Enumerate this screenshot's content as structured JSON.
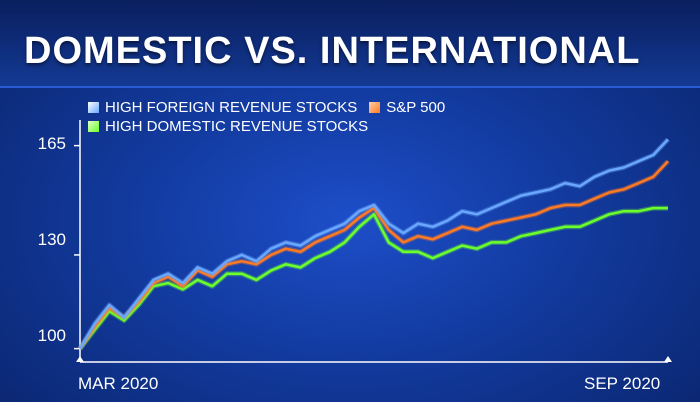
{
  "title": "DOMESTIC VS. INTERNATIONAL",
  "colors": {
    "foreign": "#6aa8ff",
    "sp500": "#ff7a22",
    "domestic": "#6cff2a",
    "axis": "#ffffff"
  },
  "chart_data": {
    "type": "line",
    "xlabel": "",
    "ylabel": "",
    "ylim": [
      97,
      170
    ],
    "x_tick_labels": [
      "MAR 2020",
      "SEP 2020"
    ],
    "y_ticks": [
      100,
      130,
      165
    ],
    "legend": {
      "placement": "top-left",
      "entries": [
        {
          "name": "HIGH FOREIGN REVENUE STOCKS",
          "color": "#6aa8ff"
        },
        {
          "name": "S&P 500",
          "color": "#ff7a22"
        },
        {
          "name": "HIGH DOMESTIC REVENUE STOCKS",
          "color": "#6cff2a"
        }
      ]
    },
    "series": [
      {
        "name": "HIGH FOREIGN REVENUE STOCKS",
        "values": [
          100,
          108,
          114,
          110,
          116,
          122,
          124,
          121,
          126,
          124,
          128,
          130,
          128,
          132,
          134,
          133,
          136,
          138,
          140,
          144,
          146,
          140,
          137,
          140,
          139,
          141,
          144,
          143,
          145,
          147,
          149,
          150,
          151,
          153,
          152,
          155,
          157,
          158,
          160,
          162,
          167
        ]
      },
      {
        "name": "S&P 500",
        "values": [
          100,
          107,
          113,
          110,
          115,
          121,
          123,
          120,
          125,
          123,
          127,
          128,
          127,
          130,
          132,
          131,
          134,
          136,
          138,
          142,
          145,
          138,
          134,
          136,
          135,
          137,
          139,
          138,
          140,
          141,
          142,
          143,
          145,
          146,
          146,
          148,
          150,
          151,
          153,
          155,
          160
        ]
      },
      {
        "name": "HIGH DOMESTIC REVENUE STOCKS",
        "values": [
          100,
          106,
          112,
          109,
          114,
          120,
          121,
          119,
          122,
          120,
          124,
          124,
          122,
          125,
          127,
          126,
          129,
          131,
          134,
          139,
          143,
          134,
          131,
          131,
          129,
          131,
          133,
          132,
          134,
          134,
          136,
          137,
          138,
          139,
          139,
          141,
          143,
          144,
          144,
          145,
          145
        ]
      }
    ]
  }
}
